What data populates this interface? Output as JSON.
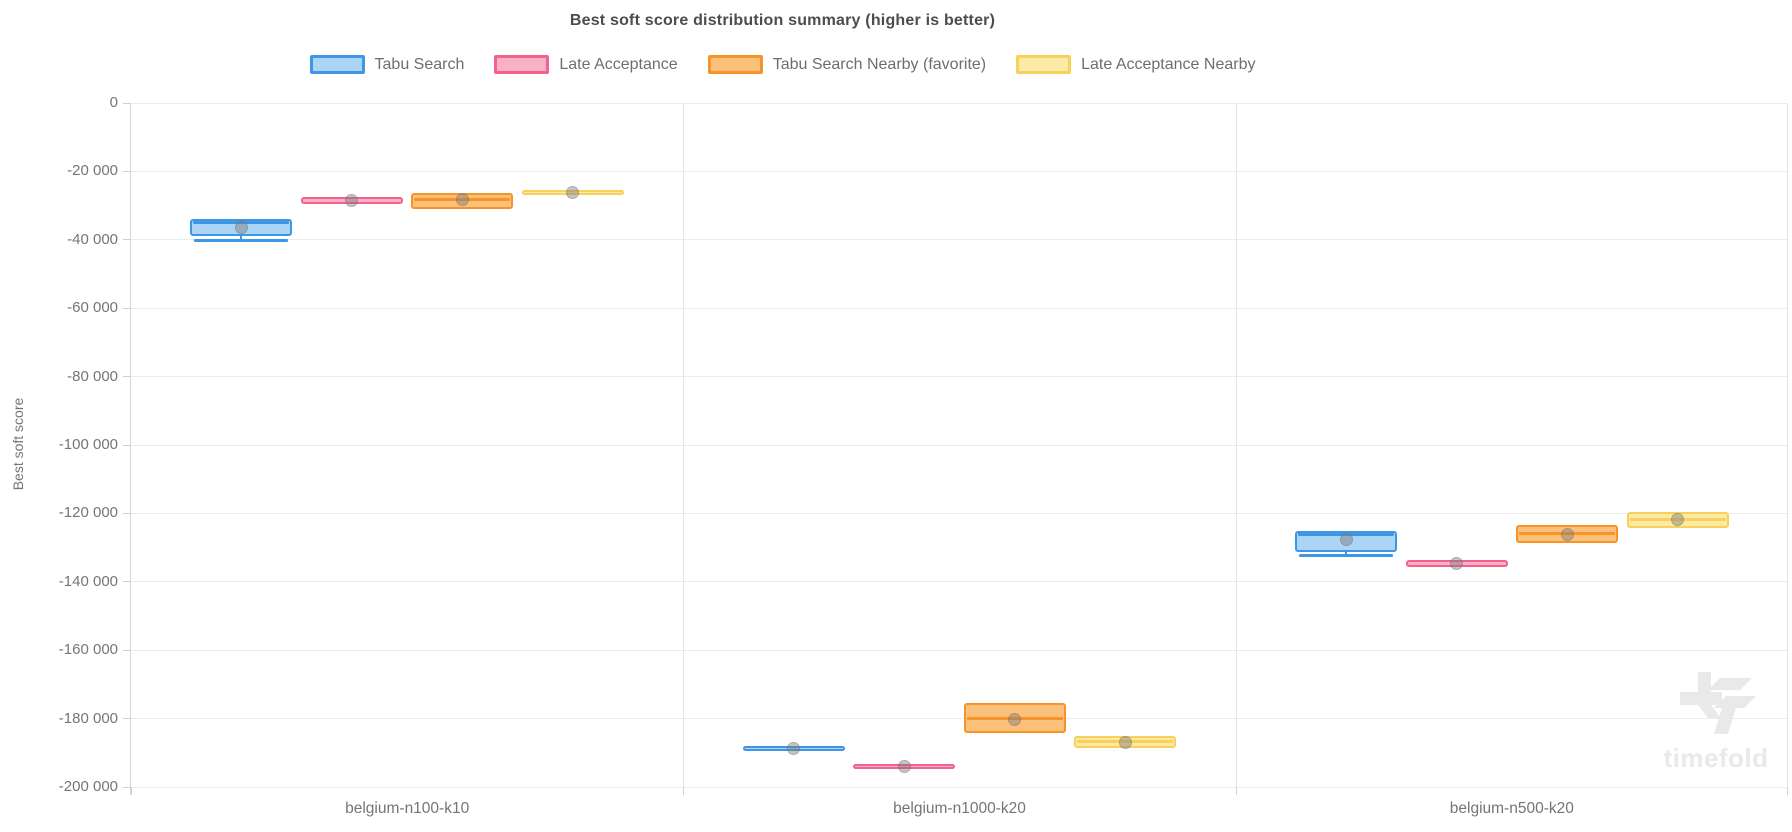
{
  "title": "Best soft score distribution summary (higher is better)",
  "watermark": {
    "text": "timefold"
  },
  "y_axis": {
    "label": "Best soft score",
    "tick_labels": [
      "0",
      "-20 000",
      "-40 000",
      "-60 000",
      "-80 000",
      "-100 000",
      "-120 000",
      "-140 000",
      "-160 000",
      "-180 000",
      "-200 000"
    ]
  },
  "chart_data": {
    "type": "boxplot",
    "title": "Best soft score distribution summary (higher is better)",
    "xlabel": "",
    "ylabel": "Best soft score",
    "ylim": [
      -200000,
      0
    ],
    "y_tick_step": 20000,
    "grid": true,
    "legend_position": "top",
    "categories": [
      "belgium-n100-k10",
      "belgium-n1000-k20",
      "belgium-n500-k20"
    ],
    "series": [
      {
        "name": "Tabu Search",
        "color": "#3e97e6",
        "fill": "#abd4f5",
        "points": [
          {
            "q1": -39000,
            "median": -34800,
            "q3": -34000,
            "mean": -36300,
            "whisker_low": -40100
          },
          {
            "q1": -189600,
            "median": -188600,
            "q3": -187900,
            "mean": -188600
          },
          {
            "q1": -131300,
            "median": -126100,
            "q3": -125200,
            "mean": -127700,
            "whisker_low": -132300
          }
        ]
      },
      {
        "name": "Late Acceptance",
        "color": "#f4618c",
        "fill": "#f9b1c7",
        "points": [
          {
            "q1": -29500,
            "median": -28400,
            "q3": -27400,
            "mean": -28500
          },
          {
            "q1": -194600,
            "median": -193900,
            "q3": -193200,
            "mean": -193900
          },
          {
            "q1": -135700,
            "median": -134600,
            "q3": -133500,
            "mean": -134600
          }
        ]
      },
      {
        "name": "Tabu Search Nearby (favorite)",
        "color": "#f79429",
        "fill": "#fbc17a",
        "points": [
          {
            "q1": -30900,
            "median": -28200,
            "q3": -26400,
            "mean": -28300
          },
          {
            "q1": -184300,
            "median": -180100,
            "q3": -175500,
            "mean": -180200
          },
          {
            "q1": -128700,
            "median": -126000,
            "q3": -123500,
            "mean": -126100
          }
        ]
      },
      {
        "name": "Late Acceptance Nearby",
        "color": "#f7d158",
        "fill": "#fbe9a8",
        "points": [
          {
            "q1": -27000,
            "median": -26300,
            "q3": -25400,
            "mean": -26300
          },
          {
            "q1": -188500,
            "median": -186800,
            "q3": -185200,
            "mean": -186900
          },
          {
            "q1": -124200,
            "median": -121900,
            "q3": -119600,
            "mean": -121800
          }
        ]
      }
    ]
  }
}
